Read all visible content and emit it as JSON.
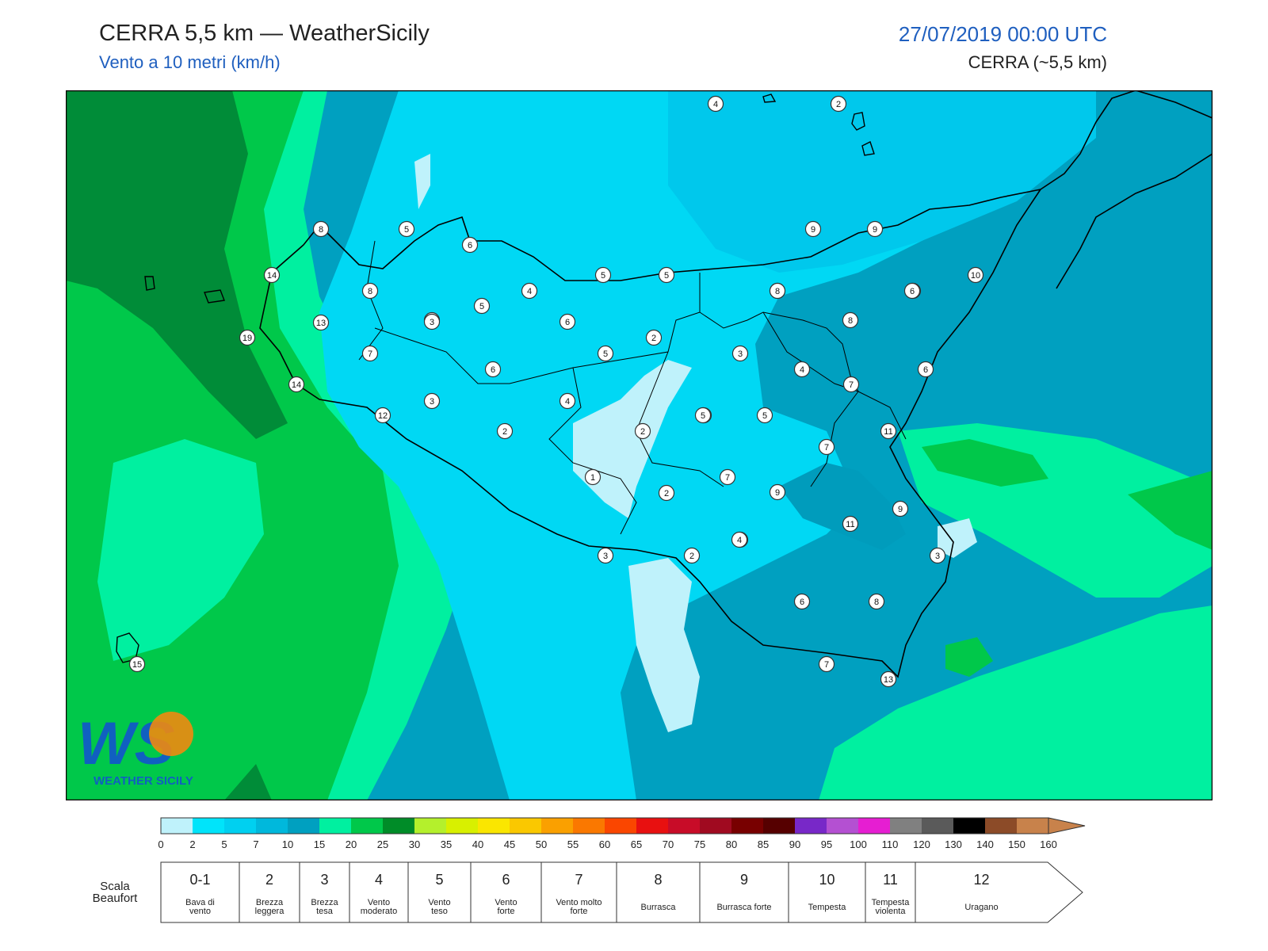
{
  "header": {
    "title": "CERRA 5,5 km — WeatherSicily",
    "subtitle": "Vento a 10 metri (km/h)",
    "datetime": "27/07/2019 00:00 UTC",
    "model": "CERRA (~5,5 km)"
  },
  "logo": {
    "initials": "WS",
    "name": "WEATHER SICILY"
  },
  "colors": {
    "sea_far_dark": "#008c38",
    "sea_green": "#00c84a",
    "sea_mint": "#00f0a0",
    "land_cyan": "#00d8f4",
    "land_light": "#bff2fb",
    "land_teal": "#009cbc"
  },
  "station_values": [
    4,
    2,
    5,
    6,
    8,
    5,
    5,
    9,
    9,
    14,
    8,
    6,
    6,
    8,
    10,
    4,
    5,
    8,
    6,
    5,
    13,
    3,
    6,
    2,
    3,
    19,
    7,
    5,
    6,
    4,
    6,
    3,
    7,
    14,
    4,
    5,
    12,
    2,
    2,
    5,
    5,
    11,
    7,
    1,
    7,
    9,
    4,
    2,
    9,
    11,
    3,
    2,
    4,
    3,
    6,
    8,
    7,
    13,
    15
  ],
  "colorbar": {
    "ticks": [
      "0",
      "2",
      "5",
      "7",
      "10",
      "15",
      "20",
      "25",
      "30",
      "35",
      "40",
      "45",
      "50",
      "55",
      "60",
      "65",
      "70",
      "75",
      "80",
      "85",
      "90",
      "95",
      "100",
      "110",
      "120",
      "130",
      "140",
      "150",
      "160"
    ],
    "colors": [
      "#bff2fb",
      "#00e4fa",
      "#00d0f0",
      "#00b8dc",
      "#00a0c0",
      "#00f0a0",
      "#00c84a",
      "#008c28",
      "#b4f02c",
      "#d8f000",
      "#fae600",
      "#fac800",
      "#faa000",
      "#fa7800",
      "#fa4600",
      "#e81010",
      "#c80c28",
      "#a00a20",
      "#780000",
      "#560000",
      "#7828c8",
      "#b450d2",
      "#e61ed2",
      "#808080",
      "#5a5a5a",
      "#000000",
      "#8c4b28",
      "#c8824b"
    ]
  },
  "beaufort": {
    "label": "Scala Beaufort",
    "classes": [
      {
        "num": "0-1",
        "name": "Bava di vento"
      },
      {
        "num": "2",
        "name": "Brezza leggera"
      },
      {
        "num": "3",
        "name": "Brezza tesa"
      },
      {
        "num": "4",
        "name": "Vento moderato"
      },
      {
        "num": "5",
        "name": "Vento teso"
      },
      {
        "num": "6",
        "name": "Vento forte"
      },
      {
        "num": "7",
        "name": "Vento molto forte"
      },
      {
        "num": "8",
        "name": "Burrasca"
      },
      {
        "num": "9",
        "name": "Burrasca forte"
      },
      {
        "num": "10",
        "name": "Tempesta"
      },
      {
        "num": "11",
        "name": "Tempesta violenta"
      },
      {
        "num": "12",
        "name": "Uragano"
      }
    ]
  }
}
